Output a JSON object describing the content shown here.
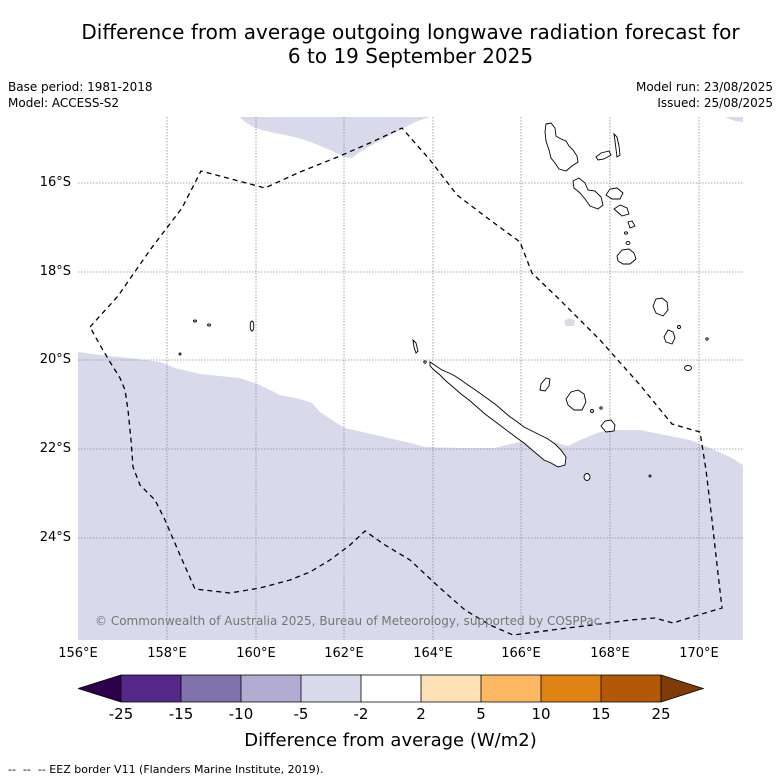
{
  "title": {
    "line1": "Difference from average outgoing longwave radiation forecast for",
    "line2": "6 to 19 September 2025"
  },
  "info_left": {
    "base_period": "Base period: 1981-2018",
    "model": "Model: ACCESS-S2"
  },
  "info_right": {
    "model_run": "Model run: 23/08/2025",
    "issued": "Issued: 25/08/2025"
  },
  "map": {
    "lon_ticks": [
      "156°E",
      "158°E",
      "160°E",
      "162°E",
      "164°E",
      "166°E",
      "168°E",
      "170°E"
    ],
    "lat_ticks": [
      "16°S",
      "18°S",
      "20°S",
      "22°S",
      "24°S"
    ],
    "copyright": "© Commonwealth of Australia 2025, Bureau of Meteorology, supported by COSPPac",
    "anomaly_fill_color": "#d8daeb",
    "land_color": "#ffffff",
    "eez_color": "#000000"
  },
  "colorbar": {
    "label": "Difference from average (W/m2)",
    "ticks": [
      "-25",
      "-15",
      "-10",
      "-5",
      "-2",
      "2",
      "5",
      "10",
      "15",
      "25"
    ],
    "under_color": "#2d004b",
    "colors": [
      "#542788",
      "#8073ac",
      "#b2abd2",
      "#d8daeb",
      "#ffffff",
      "#fee0b6",
      "#fdb863",
      "#e08214",
      "#b35806"
    ],
    "over_color": "#7f3b08"
  },
  "legend_note": "--  --  -- EEZ border V11 (Flanders Marine Institute, 2019)."
}
